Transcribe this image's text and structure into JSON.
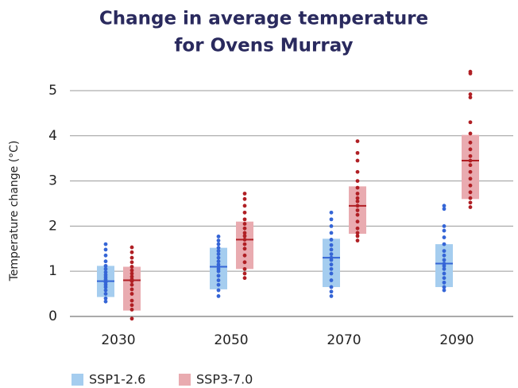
{
  "chart_data": {
    "type": "range-dots",
    "title": [
      "Change in average temperature",
      "for Ovens Murray"
    ],
    "y_label": "Temperature change (°C)",
    "categories": [
      "2030",
      "2050",
      "2070",
      "2090"
    ],
    "ylim": [
      -0.15,
      5.5
    ],
    "yticks": [
      0,
      1,
      2,
      3,
      4,
      5
    ],
    "grid": true,
    "legend": "bottom-left",
    "series": [
      {
        "name": "SSP1-2.6",
        "color": "#3565d6",
        "box_color": "#a5cdef",
        "low": [
          0.43,
          0.6,
          0.65,
          0.65
        ],
        "high": [
          1.12,
          1.52,
          1.72,
          1.6
        ],
        "median": [
          0.78,
          1.1,
          1.3,
          1.17
        ],
        "points": [
          [
            0.33,
            0.4,
            0.5,
            0.58,
            0.65,
            0.7,
            0.75,
            0.78,
            0.82,
            0.87,
            0.92,
            0.98,
            1.05,
            1.12,
            1.22,
            1.35,
            1.48,
            1.6
          ],
          [
            0.45,
            0.58,
            0.7,
            0.8,
            0.9,
            1.0,
            1.05,
            1.1,
            1.15,
            1.22,
            1.3,
            1.38,
            1.45,
            1.52,
            1.6,
            1.68,
            1.77
          ],
          [
            0.45,
            0.55,
            0.65,
            0.8,
            0.95,
            1.05,
            1.15,
            1.25,
            1.3,
            1.38,
            1.48,
            1.58,
            1.7,
            1.85,
            2.0,
            2.15,
            2.3
          ],
          [
            0.58,
            0.65,
            0.75,
            0.85,
            0.95,
            1.05,
            1.12,
            1.17,
            1.25,
            1.35,
            1.45,
            1.6,
            1.75,
            1.9,
            2.0,
            2.38,
            2.45
          ]
        ]
      },
      {
        "name": "SSP3-7.0",
        "color": "#b01f24",
        "box_color": "#e9abb0",
        "low": [
          0.13,
          1.05,
          1.83,
          2.6
        ],
        "high": [
          1.1,
          2.1,
          2.88,
          4.02
        ],
        "median": [
          0.8,
          1.7,
          2.45,
          3.45
        ],
        "points": [
          [
            -0.05,
            0.15,
            0.25,
            0.35,
            0.5,
            0.6,
            0.7,
            0.78,
            0.82,
            0.88,
            0.95,
            1.02,
            1.1,
            1.2,
            1.3,
            1.42,
            1.53
          ],
          [
            0.85,
            0.95,
            1.05,
            1.2,
            1.35,
            1.5,
            1.6,
            1.7,
            1.78,
            1.85,
            1.95,
            2.05,
            2.15,
            2.3,
            2.45,
            2.6,
            2.72
          ],
          [
            1.68,
            1.78,
            1.85,
            1.95,
            2.1,
            2.25,
            2.35,
            2.45,
            2.55,
            2.62,
            2.72,
            2.85,
            3.0,
            3.2,
            3.45,
            3.62,
            3.88
          ],
          [
            2.42,
            2.52,
            2.62,
            2.75,
            2.9,
            3.05,
            3.2,
            3.35,
            3.45,
            3.55,
            3.7,
            3.85,
            4.05,
            4.3,
            4.85,
            4.92,
            5.38,
            5.42
          ]
        ]
      }
    ]
  }
}
